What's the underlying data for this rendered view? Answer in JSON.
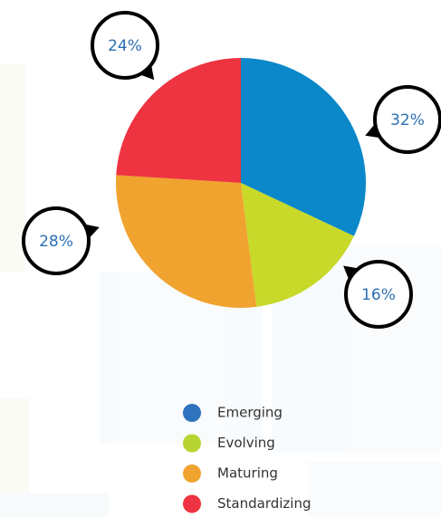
{
  "chart_data": {
    "type": "pie",
    "categories": [
      "Emerging",
      "Evolving",
      "Maturing",
      "Standardizing"
    ],
    "values": [
      32,
      16,
      28,
      24
    ],
    "value_labels": [
      "32%",
      "16%",
      "28%",
      "24%"
    ],
    "colors": [
      "#0a88c9",
      "#c8d92a",
      "#f0a32f",
      "#ee3341"
    ],
    "legend_colors": [
      "#2f73bf",
      "#b8d432",
      "#f0a32f",
      "#ee3341"
    ]
  }
}
